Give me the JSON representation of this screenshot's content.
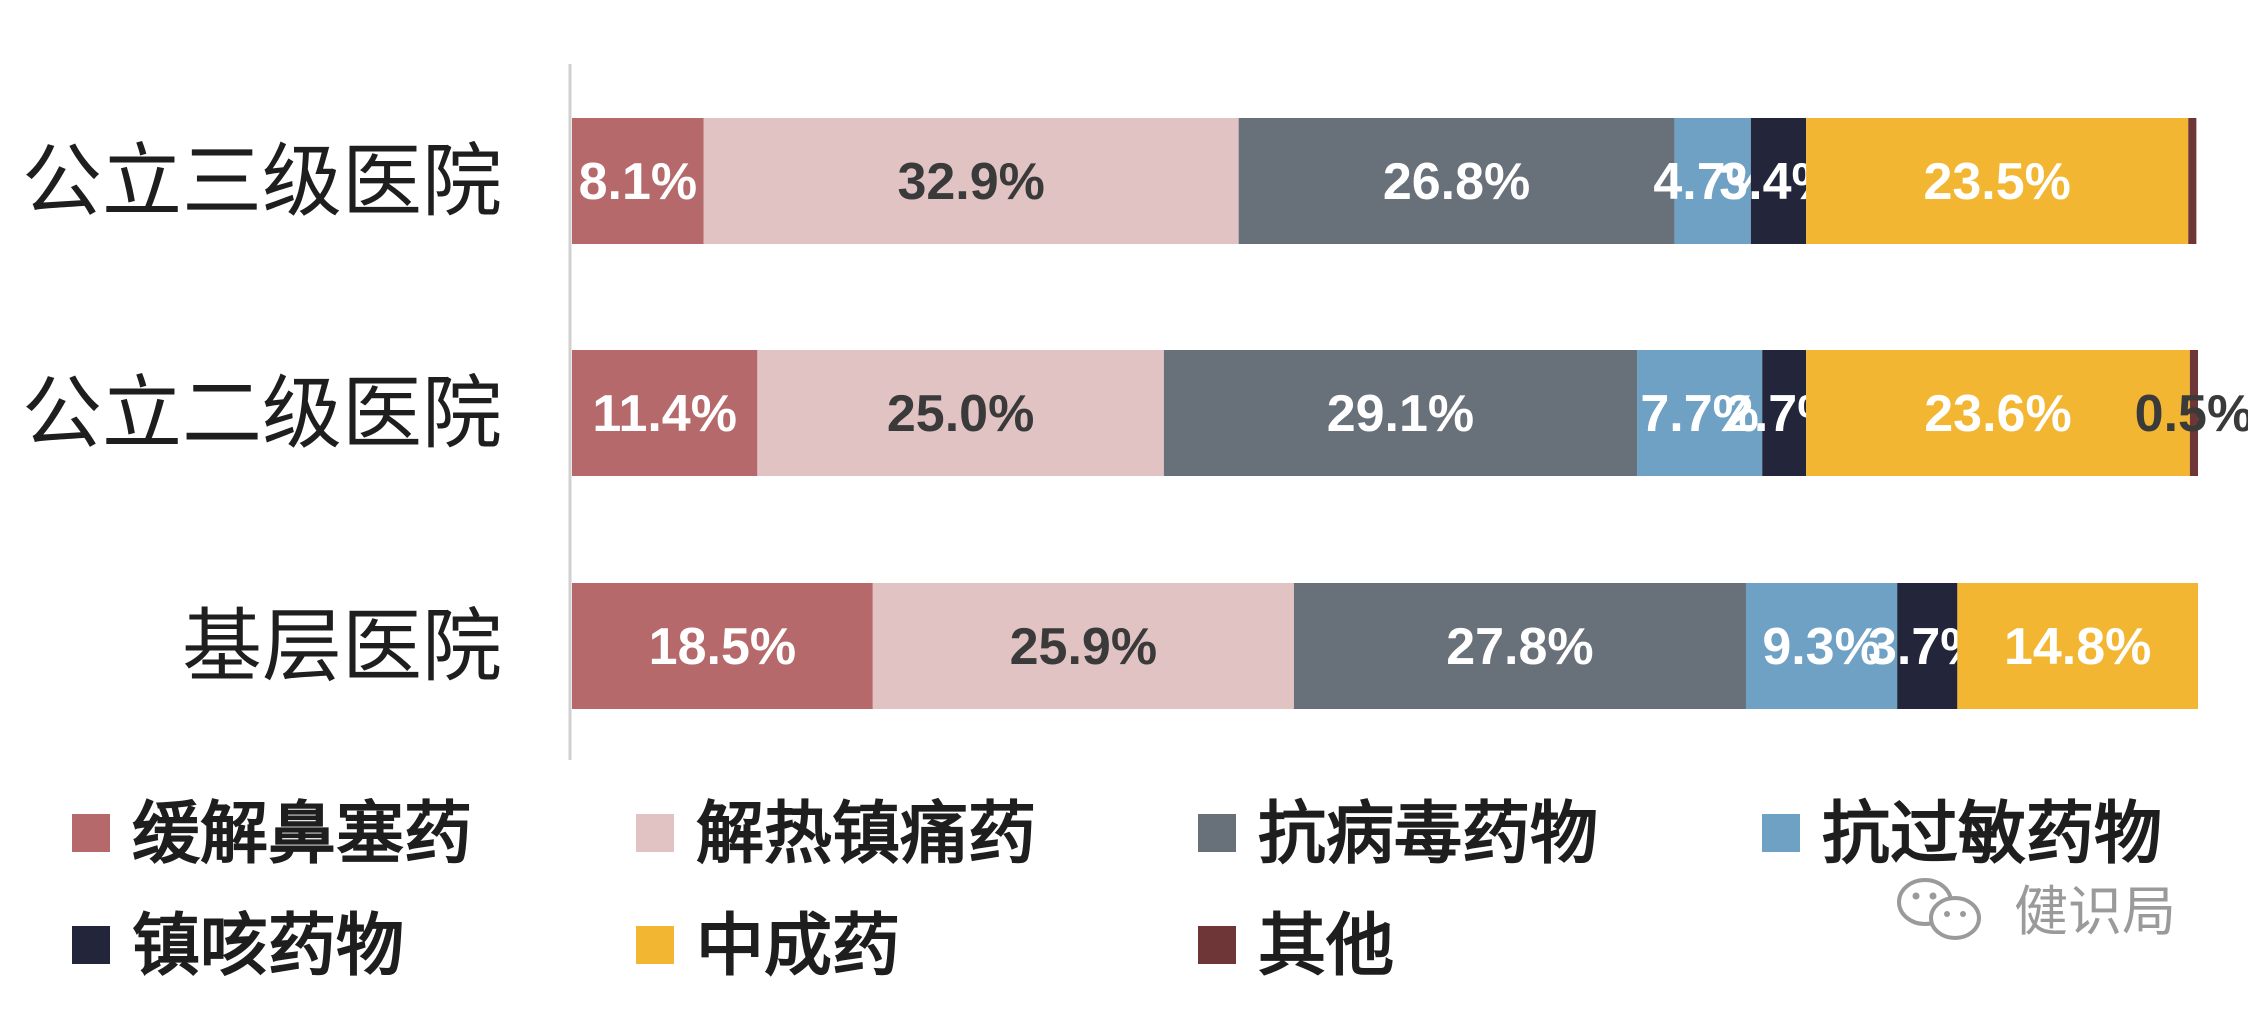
{
  "chart_data": {
    "type": "bar",
    "orientation": "horizontal",
    "stacked": true,
    "categories": [
      "公立三级医院",
      "公立二级医院",
      "基层医院"
    ],
    "series": [
      {
        "name": "缓解鼻塞药",
        "color": "#b5696b",
        "values": [
          8.1,
          11.4,
          18.5
        ],
        "labels": [
          "8.1%",
          "11.4%",
          "18.5%"
        ],
        "label_color": "#ffffff"
      },
      {
        "name": "解热镇痛药",
        "color": "#e2c3c4",
        "values": [
          32.9,
          25.0,
          25.9
        ],
        "labels": [
          "32.9%",
          "25.0%",
          "25.9%"
        ],
        "label_color": "#3a3a3a"
      },
      {
        "name": "抗病毒药物",
        "color": "#687079",
        "values": [
          26.8,
          29.1,
          27.8
        ],
        "labels": [
          "26.8%",
          "29.1%",
          "27.8%"
        ],
        "label_color": "#ffffff"
      },
      {
        "name": "抗过敏药物",
        "color": "#6fa1c4",
        "values": [
          4.7,
          7.7,
          9.3
        ],
        "labels": [
          "4.7%",
          "7.7%",
          "9.3%"
        ],
        "label_color": "#ffffff"
      },
      {
        "name": "镇咳药物",
        "color": "#23263b",
        "values": [
          3.4,
          2.7,
          3.7
        ],
        "labels": [
          "3.4%",
          "2.7%",
          "3.7%"
        ],
        "label_color": "#ffffff"
      },
      {
        "name": "中成药",
        "color": "#f2b632",
        "values": [
          23.5,
          23.6,
          14.8
        ],
        "labels": [
          "23.5%",
          "23.6%",
          "14.8%"
        ],
        "label_color": "#ffffff"
      },
      {
        "name": "其他",
        "color": "#6e3636",
        "values": [
          0.5,
          0.5,
          0
        ],
        "labels": [
          "",
          "0.5%",
          ""
        ],
        "label_color": "#3a3a3a"
      }
    ],
    "xlim": [
      0,
      100
    ],
    "grid": false,
    "legend": "bottom"
  },
  "watermark": {
    "text": "健识局",
    "icon": "wechat-icon"
  }
}
